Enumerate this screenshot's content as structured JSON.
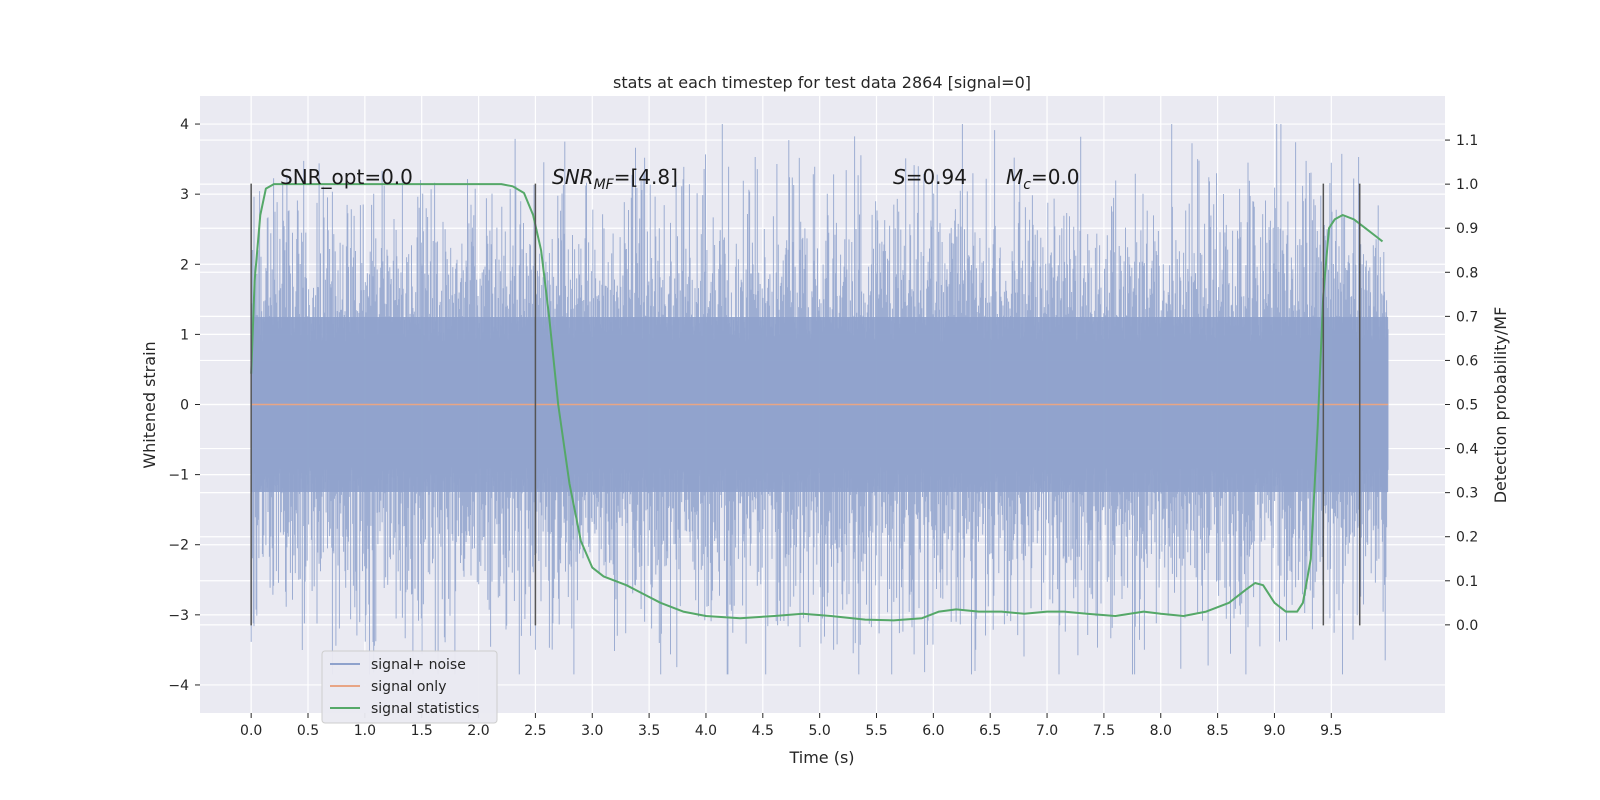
{
  "chart_data": {
    "type": "line",
    "title": "stats at each timestep for test data 2864 [signal=0]",
    "xlabel": "Time (s)",
    "ylabel": "Whitened strain",
    "y2label": "Detection probability/MF",
    "xlim": [
      -0.45,
      10.5
    ],
    "ylim": [
      -4.4,
      4.4
    ],
    "y2lim": [
      -0.2,
      1.2
    ],
    "x_ticks": [
      0.0,
      0.5,
      1.0,
      1.5,
      2.0,
      2.5,
      3.0,
      3.5,
      4.0,
      4.5,
      5.0,
      5.5,
      6.0,
      6.5,
      7.0,
      7.5,
      8.0,
      8.5,
      9.0,
      9.5
    ],
    "x_tick_labels": [
      "0.0",
      "0.5",
      "1.0",
      "1.5",
      "2.0",
      "2.5",
      "3.0",
      "3.5",
      "4.0",
      "4.5",
      "5.0",
      "5.5",
      "6.0",
      "6.5",
      "7.0",
      "7.5",
      "8.0",
      "8.5",
      "9.0",
      "9.5"
    ],
    "y_ticks": [
      4,
      3,
      2,
      1,
      0,
      -1,
      -2,
      -3,
      -4
    ],
    "y_tick_labels": [
      "4",
      "3",
      "2",
      "1",
      "0",
      "−1",
      "−2",
      "−3",
      "−4"
    ],
    "y2_ticks": [
      1.1,
      1.0,
      0.9,
      0.8,
      0.7,
      0.6,
      0.5,
      0.4,
      0.3,
      0.2,
      0.1,
      0.0
    ],
    "y2_tick_labels": [
      "1.1",
      "1.0",
      "0.9",
      "0.8",
      "0.7",
      "0.6",
      "0.5",
      "0.4",
      "0.3",
      "0.2",
      "0.1",
      "0.0"
    ],
    "grid": true,
    "legend_placement": "lower-left",
    "annotations": {
      "snr_opt": "SNR_opt=0.0",
      "snr_mf_name": "SNR",
      "snr_mf_sub": "MF",
      "snr_mf_value": "=[4.8]",
      "s_name": "S",
      "s_value": "=0.94",
      "mc_name": "M",
      "mc_sub": "c",
      "mc_value": "=0.0"
    },
    "series": [
      {
        "name": "signal+ noise",
        "color": "#8fa2cc",
        "axis": "left",
        "kind": "noise",
        "x_range": [
          0.0,
          10.0
        ],
        "extent": [
          -3.85,
          4.0
        ]
      },
      {
        "name": "signal only",
        "color": "#e8a585",
        "axis": "left",
        "x": [
          0.0,
          10.0
        ],
        "y": [
          0.0,
          0.0
        ]
      },
      {
        "name": "signal statistics",
        "color": "#55a868",
        "axis": "right",
        "x": [
          0.0,
          0.03,
          0.08,
          0.13,
          0.2,
          0.3,
          0.5,
          1.0,
          1.5,
          2.0,
          2.2,
          2.3,
          2.4,
          2.48,
          2.55,
          2.62,
          2.7,
          2.8,
          2.9,
          3.0,
          3.1,
          3.2,
          3.3,
          3.45,
          3.6,
          3.8,
          4.0,
          4.3,
          4.6,
          4.85,
          5.1,
          5.4,
          5.65,
          5.9,
          6.05,
          6.2,
          6.4,
          6.6,
          6.8,
          7.0,
          7.15,
          7.35,
          7.6,
          7.85,
          8.0,
          8.2,
          8.4,
          8.6,
          8.75,
          8.83,
          8.9,
          9.0,
          9.1,
          9.2,
          9.25,
          9.32,
          9.38,
          9.43,
          9.48,
          9.53,
          9.6,
          9.7,
          9.8,
          9.9,
          9.95
        ],
        "y": [
          0.57,
          0.78,
          0.93,
          0.99,
          1.0,
          1.0,
          1.0,
          1.0,
          1.0,
          1.0,
          1.0,
          0.995,
          0.98,
          0.93,
          0.85,
          0.7,
          0.5,
          0.32,
          0.19,
          0.13,
          0.11,
          0.1,
          0.09,
          0.07,
          0.05,
          0.03,
          0.02,
          0.015,
          0.02,
          0.025,
          0.02,
          0.012,
          0.01,
          0.015,
          0.03,
          0.035,
          0.03,
          0.03,
          0.025,
          0.03,
          0.03,
          0.025,
          0.02,
          0.03,
          0.025,
          0.02,
          0.03,
          0.05,
          0.08,
          0.095,
          0.09,
          0.05,
          0.03,
          0.03,
          0.05,
          0.15,
          0.45,
          0.75,
          0.9,
          0.92,
          0.93,
          0.92,
          0.9,
          0.88,
          0.87
        ]
      }
    ],
    "vlines": [
      0.0,
      2.5,
      9.43,
      9.75
    ],
    "vline_range": [
      -3.15,
      3.15
    ]
  }
}
